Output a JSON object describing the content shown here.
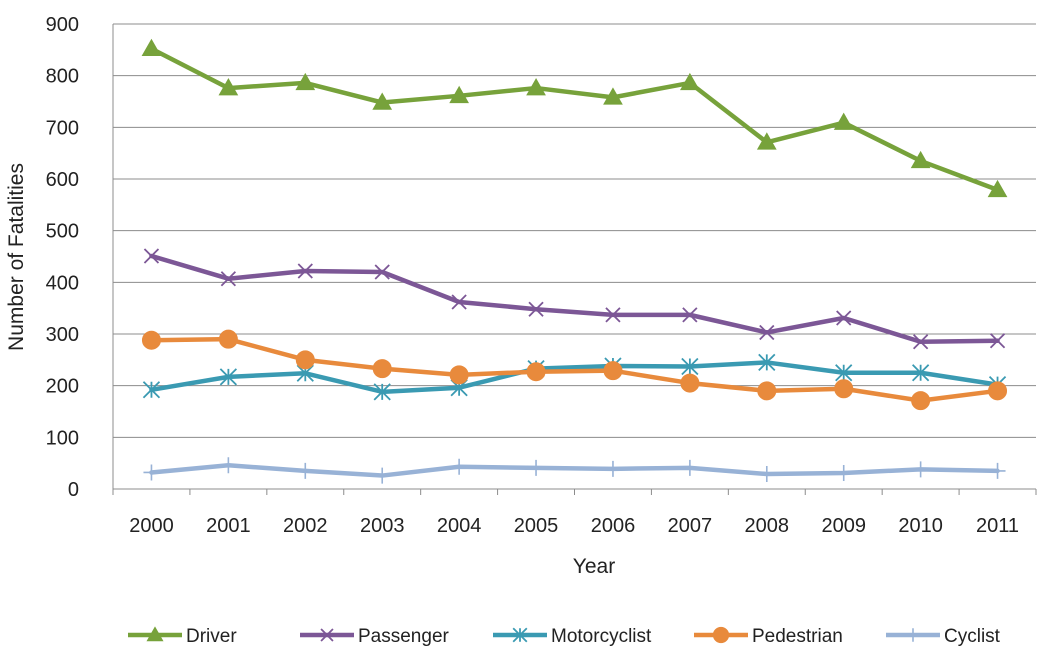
{
  "chart_data": {
    "type": "line",
    "title": "",
    "xlabel": "Year",
    "ylabel": "Number of Fatalities",
    "ylim": [
      0,
      900
    ],
    "yticks": [
      0,
      100,
      200,
      300,
      400,
      500,
      600,
      700,
      800,
      900
    ],
    "categories": [
      "2000",
      "2001",
      "2002",
      "2003",
      "2004",
      "2005",
      "2006",
      "2007",
      "2008",
      "2009",
      "2010",
      "2011"
    ],
    "grid": "horizontal",
    "legend_position": "bottom",
    "series": [
      {
        "name": "Driver",
        "color": "#77A23B",
        "marker": "triangle",
        "values": [
          852,
          776,
          786,
          748,
          761,
          776,
          758,
          786,
          671,
          709,
          635,
          579
        ]
      },
      {
        "name": "Passenger",
        "color": "#7C5796",
        "marker": "x",
        "values": [
          451,
          407,
          422,
          420,
          362,
          348,
          337,
          337,
          303,
          331,
          285,
          287
        ]
      },
      {
        "name": "Motorcyclist",
        "color": "#3A9AB2",
        "marker": "asterisk",
        "values": [
          192,
          217,
          224,
          188,
          196,
          233,
          238,
          237,
          245,
          225,
          225,
          202
        ]
      },
      {
        "name": "Pedestrian",
        "color": "#E88A3C",
        "marker": "circle",
        "values": [
          288,
          290,
          250,
          233,
          221,
          227,
          229,
          205,
          190,
          194,
          171,
          190
        ]
      },
      {
        "name": "Cyclist",
        "color": "#98B2D6",
        "marker": "plus",
        "values": [
          32,
          46,
          35,
          26,
          43,
          41,
          39,
          41,
          29,
          31,
          38,
          35
        ]
      }
    ]
  }
}
